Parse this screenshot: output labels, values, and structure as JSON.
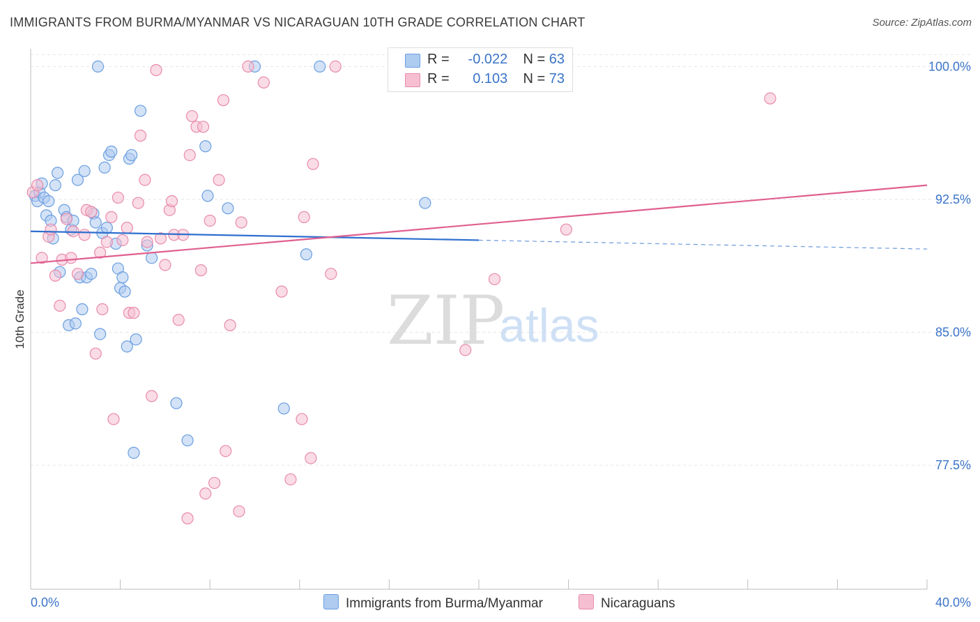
{
  "title": "IMMIGRANTS FROM BURMA/MYANMAR VS NICARAGUAN 10TH GRADE CORRELATION CHART",
  "source": "Source: ZipAtlas.com",
  "watermark": {
    "zip": "ZIP",
    "atlas": "atlas"
  },
  "legend_box": [
    {
      "r_label": "R =",
      "r_value": "-0.022",
      "n_label": "N =",
      "n_value": "63"
    },
    {
      "r_label": "R =",
      "r_value": "0.103",
      "n_label": "N =",
      "n_value": "73"
    }
  ],
  "colors": {
    "blue_fill": "#aecbf0",
    "blue_stroke": "#6a9ee0",
    "blue_line": "#2f6fcf",
    "pink_fill": "#f6bfd1",
    "pink_stroke": "#e88aab",
    "pink_line": "#e05f8f",
    "tick_label": "#3a74c9",
    "grid": "#e6e6e6"
  },
  "chart_data": {
    "type": "scatter",
    "title": "IMMIGRANTS FROM BURMA/MYANMAR VS NICARAGUAN 10TH GRADE CORRELATION CHART",
    "xlabel": "",
    "ylabel": "10th Grade",
    "xlim": [
      0,
      40
    ],
    "ylim": [
      70.5,
      101
    ],
    "x_tick_labels": [
      "0.0%",
      "40.0%"
    ],
    "y_ticks": [
      77.5,
      85.0,
      92.5,
      100.0
    ],
    "y_tick_labels": [
      "77.5%",
      "85.0%",
      "92.5%",
      "100.0%"
    ],
    "grid": true,
    "legend_placement": "bottom",
    "series": [
      {
        "name": "Immigrants from Burma/Myanmar",
        "color": "#6a9ee0",
        "trend": {
          "x": [
            0,
            20,
            40
          ],
          "y": [
            90.7,
            90.2,
            89.7
          ],
          "solid_until": 20
        },
        "points": [
          [
            0.2,
            92.7
          ],
          [
            0.3,
            92.4
          ],
          [
            0.4,
            92.9
          ],
          [
            0.5,
            93.4
          ],
          [
            0.6,
            92.6
          ],
          [
            0.7,
            91.6
          ],
          [
            0.8,
            92.4
          ],
          [
            0.9,
            91.3
          ],
          [
            1.0,
            90.3
          ],
          [
            1.1,
            93.3
          ],
          [
            1.2,
            94.0
          ],
          [
            1.3,
            88.4
          ],
          [
            1.5,
            91.9
          ],
          [
            1.6,
            91.5
          ],
          [
            1.7,
            85.4
          ],
          [
            1.8,
            90.8
          ],
          [
            1.9,
            91.3
          ],
          [
            2.0,
            85.5
          ],
          [
            2.1,
            93.6
          ],
          [
            2.2,
            88.1
          ],
          [
            2.3,
            86.3
          ],
          [
            2.4,
            94.1
          ],
          [
            2.5,
            88.1
          ],
          [
            2.7,
            88.3
          ],
          [
            2.8,
            91.7
          ],
          [
            2.9,
            91.2
          ],
          [
            3.0,
            100.0
          ],
          [
            3.1,
            84.9
          ],
          [
            3.2,
            90.6
          ],
          [
            3.3,
            94.3
          ],
          [
            3.4,
            90.9
          ],
          [
            3.5,
            95.0
          ],
          [
            3.6,
            95.2
          ],
          [
            3.8,
            90.0
          ],
          [
            3.9,
            88.6
          ],
          [
            4.0,
            87.5
          ],
          [
            4.1,
            88.1
          ],
          [
            4.2,
            87.3
          ],
          [
            4.3,
            84.2
          ],
          [
            4.4,
            94.8
          ],
          [
            4.5,
            95.0
          ],
          [
            4.6,
            78.2
          ],
          [
            4.7,
            84.6
          ],
          [
            4.9,
            97.5
          ],
          [
            5.2,
            89.9
          ],
          [
            5.4,
            89.2
          ],
          [
            6.5,
            81.0
          ],
          [
            7.0,
            78.9
          ],
          [
            7.8,
            95.5
          ],
          [
            7.9,
            92.7
          ],
          [
            8.8,
            92.0
          ],
          [
            10.0,
            100.0
          ],
          [
            11.3,
            80.7
          ],
          [
            12.3,
            89.4
          ],
          [
            12.9,
            100.0
          ],
          [
            17.6,
            92.3
          ]
        ]
      },
      {
        "name": "Nicaraguans",
        "color": "#e88aab",
        "trend": {
          "x": [
            0,
            40
          ],
          "y": [
            88.9,
            93.3
          ]
        },
        "points": [
          [
            0.1,
            92.9
          ],
          [
            0.3,
            93.3
          ],
          [
            0.5,
            89.2
          ],
          [
            0.8,
            90.4
          ],
          [
            0.9,
            90.8
          ],
          [
            1.1,
            88.2
          ],
          [
            1.3,
            86.5
          ],
          [
            1.4,
            89.1
          ],
          [
            1.6,
            91.4
          ],
          [
            1.8,
            89.2
          ],
          [
            1.9,
            90.7
          ],
          [
            2.1,
            88.3
          ],
          [
            2.4,
            90.5
          ],
          [
            2.5,
            91.9
          ],
          [
            2.7,
            91.8
          ],
          [
            2.9,
            83.8
          ],
          [
            3.1,
            89.5
          ],
          [
            3.2,
            86.3
          ],
          [
            3.4,
            90.1
          ],
          [
            3.6,
            91.5
          ],
          [
            3.7,
            80.1
          ],
          [
            3.9,
            92.6
          ],
          [
            4.1,
            90.2
          ],
          [
            4.3,
            90.9
          ],
          [
            4.4,
            86.1
          ],
          [
            4.6,
            86.1
          ],
          [
            4.8,
            92.3
          ],
          [
            4.9,
            96.1
          ],
          [
            5.1,
            93.6
          ],
          [
            5.2,
            90.1
          ],
          [
            5.4,
            81.4
          ],
          [
            5.6,
            99.8
          ],
          [
            5.8,
            90.3
          ],
          [
            6.0,
            88.8
          ],
          [
            6.2,
            91.9
          ],
          [
            6.3,
            92.4
          ],
          [
            6.4,
            90.5
          ],
          [
            6.6,
            85.7
          ],
          [
            6.8,
            90.5
          ],
          [
            7.0,
            74.5
          ],
          [
            7.1,
            95.0
          ],
          [
            7.2,
            97.2
          ],
          [
            7.4,
            96.6
          ],
          [
            7.6,
            88.5
          ],
          [
            7.7,
            96.6
          ],
          [
            7.8,
            75.9
          ],
          [
            8.0,
            91.3
          ],
          [
            8.2,
            76.5
          ],
          [
            8.4,
            93.6
          ],
          [
            8.6,
            98.1
          ],
          [
            8.7,
            78.3
          ],
          [
            8.9,
            85.4
          ],
          [
            9.3,
            74.9
          ],
          [
            9.4,
            91.2
          ],
          [
            9.7,
            100.0
          ],
          [
            10.4,
            99.1
          ],
          [
            11.2,
            87.3
          ],
          [
            11.6,
            76.7
          ],
          [
            12.1,
            80.1
          ],
          [
            12.2,
            91.5
          ],
          [
            12.5,
            77.9
          ],
          [
            12.6,
            94.5
          ],
          [
            13.4,
            88.3
          ],
          [
            13.6,
            100.0
          ],
          [
            19.4,
            84.0
          ],
          [
            20.7,
            88.0
          ],
          [
            21.3,
            100.0
          ],
          [
            23.9,
            90.8
          ],
          [
            33.0,
            98.2
          ]
        ]
      }
    ]
  }
}
